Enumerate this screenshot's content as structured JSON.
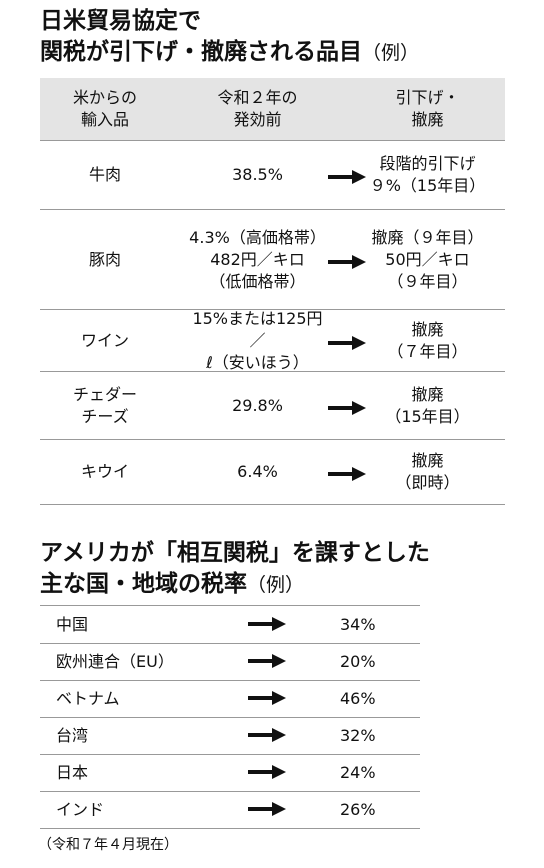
{
  "section1": {
    "title_line1": "日米貿易協定で",
    "title_line2": "関税が引下げ・撤廃される品目",
    "title_suffix": "（例）",
    "table": {
      "header": [
        "米からの\n輸入品",
        "令和２年の\n発効前",
        "引下げ・\n撤廃"
      ],
      "rows": [
        [
          "牛肉",
          "38.5%",
          "段階的引下げ\n９%（15年目）"
        ],
        [
          "豚肉",
          "4.3%（高価格帯）\n482円／キロ\n（低価格帯）",
          "撤廃（９年目）\n50円／キロ\n（９年目）"
        ],
        [
          "ワイン",
          "15%または125円／\nℓ（安いほう）",
          "撤廃\n（７年目）"
        ],
        [
          "チェダー\nチーズ",
          "29.8%",
          "撤廃\n（15年目）"
        ],
        [
          "キウイ",
          "6.4%",
          "撤廃\n（即時）"
        ]
      ]
    }
  },
  "section2": {
    "title_line1": "アメリカが「相互関税」を課すとした",
    "title_line2": "主な国・地域の税率",
    "title_suffix": "（例）",
    "table": {
      "rows": [
        [
          "中国",
          "34%"
        ],
        [
          "欧州連合（EU）",
          "20%"
        ],
        [
          "ベトナム",
          "46%"
        ],
        [
          "台湾",
          "32%"
        ],
        [
          "日本",
          "24%"
        ],
        [
          "インド",
          "26%"
        ]
      ]
    }
  },
  "footnote": "（令和７年４月現在）"
}
